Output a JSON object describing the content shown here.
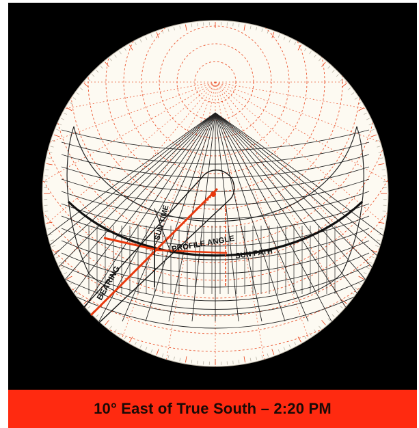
{
  "caption": {
    "text": "10° East of True South – 2:20 PM"
  },
  "labels": {
    "bearing": "BEARING",
    "sun_time": "SUN TIME",
    "profile_angle": "PROFILE ANGLE",
    "sun_path": "SUN PATH"
  },
  "colors": {
    "background": "#000000",
    "dial": "#fdfaf2",
    "grid_ink": "#222222",
    "accent": "#e8380d",
    "caption_bar": "#ff2a10"
  },
  "icons": {
    "pointer": "bearing-pointer-icon"
  }
}
